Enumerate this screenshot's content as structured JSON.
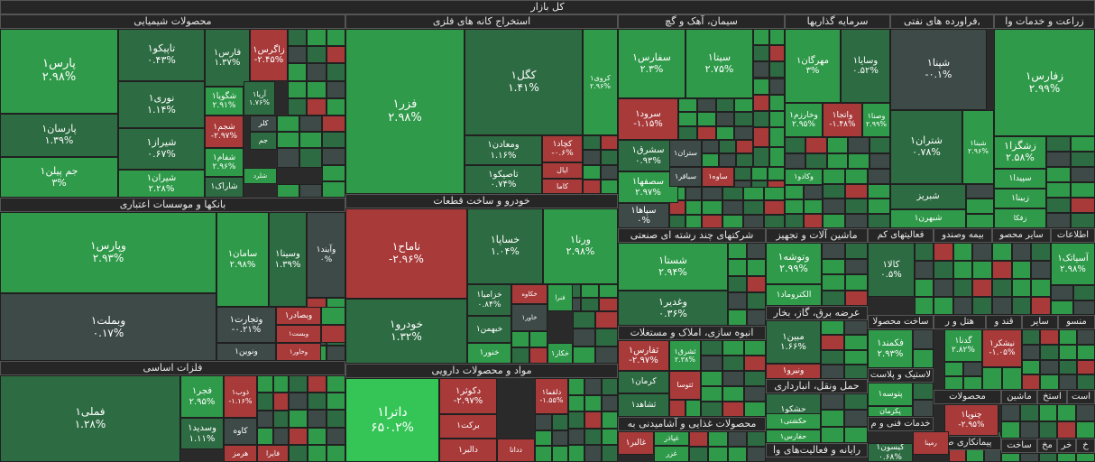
{
  "chart_data": {
    "type": "treemap",
    "title": "کل بازار",
    "colors": {
      "green": "#2f9a4a",
      "green_light": "#35c556",
      "green_dark": "#2d6b42",
      "gray": "#3d4a47",
      "red": "#a83a3a",
      "red_light": "#c24848"
    },
    "sectors": [
      {
        "key": "chem",
        "name": "محصولات شیمیایی"
      },
      {
        "key": "metal_ext",
        "name": "استخراج کانه های فلزی"
      },
      {
        "key": "cement",
        "name": "سیمان، آهک و گچ"
      },
      {
        "key": "invest",
        "name": "سرمایه گذاریها"
      },
      {
        "key": "oil",
        "name": "فراورده های نفتی,"
      },
      {
        "key": "agri",
        "name": "زراعت و خدمات وا"
      },
      {
        "key": "bank",
        "name": "بانکها و موسسات اعتباری"
      },
      {
        "key": "auto",
        "name": "خودرو و ساخت قطعات"
      },
      {
        "key": "multi",
        "name": "شرکتهای چند رشته ای صنعتی"
      },
      {
        "key": "mach",
        "name": "ماشین آلات و تجهیز"
      },
      {
        "key": "kom",
        "name": "فعالیتهای کم"
      },
      {
        "key": "ins",
        "name": "بیمه وصندو"
      },
      {
        "key": "misc",
        "name": "سایر محصو"
      },
      {
        "key": "info",
        "name": "اطلاعات"
      },
      {
        "key": "basic",
        "name": "فلزات اساسی"
      },
      {
        "key": "pharma",
        "name": "مواد و محصولات دارویی"
      },
      {
        "key": "mass",
        "name": "انبوه سازی، املاک و مستغلات"
      },
      {
        "key": "elec",
        "name": "عرضه برق، گاز، بخار"
      },
      {
        "key": "build",
        "name": "ساخت محصولا"
      },
      {
        "key": "hotel",
        "name": "هتل و ر"
      },
      {
        "key": "sugar",
        "name": "قند و"
      },
      {
        "key": "sayer",
        "name": "سایر"
      },
      {
        "key": "mansu",
        "name": "منسو"
      },
      {
        "key": "food",
        "name": "محصولات غذایی و آشامیدنی به"
      },
      {
        "key": "transport",
        "name": "حمل ونقل، انبارداری"
      },
      {
        "key": "plastic",
        "name": "لاستیک و پلاست"
      },
      {
        "key": "techserv",
        "name": "خدمات فنی و م"
      },
      {
        "key": "mahsulat",
        "name": "محصولات"
      },
      {
        "key": "mashin2",
        "name": "ماشین"
      },
      {
        "key": "estekh",
        "name": "استخ"
      },
      {
        "key": "ast",
        "name": "است"
      },
      {
        "key": "computer",
        "name": "رایانه و فعالیت‌های وا"
      },
      {
        "key": "contract",
        "name": "پیمانکاری ص"
      },
      {
        "key": "sakht",
        "name": "ساخت"
      },
      {
        "key": "mokh",
        "name": "مخ"
      },
      {
        "key": "khor",
        "name": "خر"
      },
      {
        "key": "kh",
        "name": "خ"
      }
    ],
    "tiles": [
      {
        "s": "chem",
        "n": "پارس۱",
        "v": "۲.۹۸%",
        "c": "green"
      },
      {
        "s": "chem",
        "n": "پارسان۱",
        "v": "۱.۳۹%",
        "c": "green_dark"
      },
      {
        "s": "chem",
        "n": "جم پیلن۱",
        "v": "۳%",
        "c": "green"
      },
      {
        "s": "chem",
        "n": "تاپیکو۱",
        "v": "۰.۴۳%",
        "c": "green_dark"
      },
      {
        "s": "chem",
        "n": "نوری۱",
        "v": "۱.۱۴%",
        "c": "green_dark"
      },
      {
        "s": "chem",
        "n": "شیراز۱",
        "v": "۰.۶۷%",
        "c": "green_dark"
      },
      {
        "s": "chem",
        "n": "شیران۱",
        "v": "۲.۲۸%",
        "c": "green"
      },
      {
        "s": "chem",
        "n": "فارس۱",
        "v": "۱.۳۷%",
        "c": "green_dark"
      },
      {
        "s": "chem",
        "n": "زاگرس۱",
        "v": "-۲.۴۵%",
        "c": "red"
      },
      {
        "s": "chem",
        "n": "شگویا۱",
        "v": "۲.۹۱%",
        "c": "green"
      },
      {
        "s": "chem",
        "n": "آریا۱",
        "v": "۱.۷۶%",
        "c": "green_dark"
      },
      {
        "s": "chem",
        "n": "شجم۱",
        "v": "-۲.۹۷%",
        "c": "red"
      },
      {
        "s": "chem",
        "n": "کلر",
        "v": "",
        "c": "gray"
      },
      {
        "s": "chem",
        "n": "شفام۱",
        "v": "۲.۹۶%",
        "c": "green"
      },
      {
        "s": "chem",
        "n": "جم",
        "v": "",
        "c": "green_dark"
      },
      {
        "s": "chem",
        "n": "شاراک۱",
        "v": "",
        "c": "green_dark"
      },
      {
        "s": "chem",
        "n": "شلرد",
        "v": "",
        "c": "green"
      },
      {
        "s": "metal_ext",
        "n": "فزر۱",
        "v": "۲.۹۸%",
        "c": "green"
      },
      {
        "s": "metal_ext",
        "n": "کگل۱",
        "v": "۱.۴۱%",
        "c": "green_dark"
      },
      {
        "s": "metal_ext",
        "n": "کروی۱",
        "v": "۲.۹۶%",
        "c": "green"
      },
      {
        "s": "metal_ext",
        "n": "ومعادن۱",
        "v": "۱.۱۶%",
        "c": "green_dark"
      },
      {
        "s": "metal_ext",
        "n": "کچاد۱",
        "v": "-۰.۶%",
        "c": "red"
      },
      {
        "s": "metal_ext",
        "n": "تاصیکو۱",
        "v": "۰.۷۴%",
        "c": "green_dark"
      },
      {
        "s": "metal_ext",
        "n": "ایال",
        "v": "",
        "c": "red"
      },
      {
        "s": "metal_ext",
        "n": "کاما",
        "v": "",
        "c": "red"
      },
      {
        "s": "cement",
        "n": "سفارس۱",
        "v": "۲.۳%",
        "c": "green"
      },
      {
        "s": "cement",
        "n": "سیتا۱",
        "v": "۲.۷۵%",
        "c": "green"
      },
      {
        "s": "cement",
        "n": "سرود۱",
        "v": "-۱.۱۵%",
        "c": "red"
      },
      {
        "s": "cement",
        "n": "سشرق۱",
        "v": "۰.۹۳%",
        "c": "green_dark"
      },
      {
        "s": "cement",
        "n": "ستران۱",
        "v": "",
        "c": "gray"
      },
      {
        "s": "cement",
        "n": "سصفها۱",
        "v": "۲.۹۷%",
        "c": "green"
      },
      {
        "s": "cement",
        "n": "سباقر۱",
        "v": "",
        "c": "gray"
      },
      {
        "s": "cement",
        "n": "ساوه۱",
        "v": "",
        "c": "red"
      },
      {
        "s": "cement",
        "n": "سپاها۱",
        "v": "۰%",
        "c": "gray"
      },
      {
        "s": "invest",
        "n": "مهرگان۱",
        "v": "۳%",
        "c": "green"
      },
      {
        "s": "invest",
        "n": "وسایا۱",
        "v": "۰.۵۲%",
        "c": "green_dark"
      },
      {
        "s": "invest",
        "n": "وخارزم۱",
        "v": "۲.۹۵%",
        "c": "green"
      },
      {
        "s": "invest",
        "n": "واتجا۱",
        "v": "-۱.۴۸%",
        "c": "red"
      },
      {
        "s": "invest",
        "n": "وصنا۱",
        "v": "۲.۹۹%",
        "c": "green"
      },
      {
        "s": "invest",
        "n": "وکادو۱",
        "v": "",
        "c": "green"
      },
      {
        "s": "oil",
        "n": "شپنا۱",
        "v": "-۰.۱%",
        "c": "gray"
      },
      {
        "s": "oil",
        "n": "شتران۱",
        "v": "۰.۷۸%",
        "c": "green_dark"
      },
      {
        "s": "oil",
        "n": "شبنا۱",
        "v": "۲.۹۶%",
        "c": "green"
      },
      {
        "s": "oil",
        "n": "شبریز",
        "v": "",
        "c": "green_dark"
      },
      {
        "s": "oil",
        "n": "شبهرن۱",
        "v": "",
        "c": "green"
      },
      {
        "s": "agri",
        "n": "زفارس۱",
        "v": "۲.۹۹%",
        "c": "green"
      },
      {
        "s": "agri",
        "n": "زشگزا۱",
        "v": "۲.۵۸%",
        "c": "green"
      },
      {
        "s": "agri",
        "n": "سپیدا۱",
        "v": "",
        "c": "green"
      },
      {
        "s": "agri",
        "n": "زبینا۱",
        "v": "",
        "c": "green"
      },
      {
        "s": "agri",
        "n": "زفکا",
        "v": "",
        "c": "green"
      },
      {
        "s": "bank",
        "n": "وپارس۱",
        "v": "۲.۹۳%",
        "c": "green"
      },
      {
        "s": "bank",
        "n": "سامان۱",
        "v": "۲.۹۸%",
        "c": "green"
      },
      {
        "s": "bank",
        "n": "وسینا۱",
        "v": "۱.۳۹%",
        "c": "green_dark"
      },
      {
        "s": "bank",
        "n": "وآیند۱",
        "v": "۰%",
        "c": "gray"
      },
      {
        "s": "bank",
        "n": "وبملت۱",
        "v": "۰.۱۷%",
        "c": "gray"
      },
      {
        "s": "bank",
        "n": "وتجارت۱",
        "v": "-۰.۲۱%",
        "c": "gray"
      },
      {
        "s": "bank",
        "n": "وبصادر۱",
        "v": "",
        "c": "red"
      },
      {
        "s": "bank",
        "n": "ونوین۱",
        "v": "",
        "c": "gray"
      },
      {
        "s": "bank",
        "n": "وبست۱",
        "v": "",
        "c": "red"
      },
      {
        "s": "bank",
        "n": "وخاور۱",
        "v": "",
        "c": "red"
      },
      {
        "s": "auto",
        "n": "ناماح۱",
        "v": "-۲.۹۶%",
        "c": "red"
      },
      {
        "s": "auto",
        "n": "خساپا۱",
        "v": "۱.۰۴%",
        "c": "green_dark"
      },
      {
        "s": "auto",
        "n": "ورنا۱",
        "v": "۲.۹۸%",
        "c": "green"
      },
      {
        "s": "auto",
        "n": "خودرو۱",
        "v": "۱.۳۲%",
        "c": "green_dark"
      },
      {
        "s": "auto",
        "n": "خزامیا۱",
        "v": "۰.۸۴%",
        "c": "green_dark"
      },
      {
        "s": "auto",
        "n": "خکاوه",
        "v": "",
        "c": "red"
      },
      {
        "s": "auto",
        "n": "فنرا",
        "v": "",
        "c": "green"
      },
      {
        "s": "auto",
        "n": "خبهمن۱",
        "v": "",
        "c": "green_dark"
      },
      {
        "s": "auto",
        "n": "خاور۱",
        "v": "",
        "c": "gray"
      },
      {
        "s": "auto",
        "n": "خنور۱",
        "v": "",
        "c": "green"
      },
      {
        "s": "auto",
        "n": "خکار۱",
        "v": "",
        "c": "green"
      },
      {
        "s": "multi",
        "n": "شستا۱",
        "v": "۲.۹۴%",
        "c": "green"
      },
      {
        "s": "multi",
        "n": "وغدیر۱",
        "v": "۰.۳۶%",
        "c": "green_dark"
      },
      {
        "s": "mach",
        "n": "وتوشه۱",
        "v": "۲.۹۹%",
        "c": "green"
      },
      {
        "s": "mach",
        "n": "الکتروماد۱",
        "v": "",
        "c": "green"
      },
      {
        "s": "kom",
        "n": "کالا۱",
        "v": "۰.۵%",
        "c": "green_dark"
      },
      {
        "s": "misc",
        "n": "آسیاتک۱",
        "v": "۲.۹۸%",
        "c": "green"
      },
      {
        "s": "basic",
        "n": "فملی۱",
        "v": "۱.۲۸%",
        "c": "green_dark"
      },
      {
        "s": "basic",
        "n": "فجر۱",
        "v": "۲.۹۵%",
        "c": "green"
      },
      {
        "s": "basic",
        "n": "ذوب۱",
        "v": "-۱.۱۶%",
        "c": "red"
      },
      {
        "s": "basic",
        "n": "وسدید۱",
        "v": "۱.۱۱%",
        "c": "green_dark"
      },
      {
        "s": "basic",
        "n": "کاوه",
        "v": "",
        "c": "gray"
      },
      {
        "s": "basic",
        "n": "هرمز",
        "v": "",
        "c": "red"
      },
      {
        "s": "basic",
        "n": "فایرا",
        "v": "",
        "c": "red"
      },
      {
        "s": "pharma",
        "n": "داترا۱",
        "v": "۶۵۰.۲%",
        "c": "green_light"
      },
      {
        "s": "pharma",
        "n": "دکوثر۱",
        "v": "-۲.۹۷%",
        "c": "red"
      },
      {
        "s": "pharma",
        "n": "دلقما۱",
        "v": "-۱.۵۵%",
        "c": "red"
      },
      {
        "s": "pharma",
        "n": "برکت۱",
        "v": "",
        "c": "red"
      },
      {
        "s": "pharma",
        "n": "دالبر۱",
        "v": "",
        "c": "red"
      },
      {
        "s": "pharma",
        "n": "ددانا",
        "v": "",
        "c": "red"
      },
      {
        "s": "mass",
        "n": "ثفارس۱",
        "v": "-۲.۹۷%",
        "c": "red"
      },
      {
        "s": "mass",
        "n": "ثشرق۱",
        "v": "۲.۳۸%",
        "c": "green"
      },
      {
        "s": "mass",
        "n": "کرمان۱",
        "v": "",
        "c": "green_dark"
      },
      {
        "s": "mass",
        "n": "ثتوسا",
        "v": "",
        "c": "red"
      },
      {
        "s": "mass",
        "n": "ثشاهد۱",
        "v": "",
        "c": "green_dark"
      },
      {
        "s": "elec",
        "n": "مبین۱",
        "v": "۱.۶۶%",
        "c": "green_dark"
      },
      {
        "s": "elec",
        "n": "ونیرو۱",
        "v": "",
        "c": "red"
      },
      {
        "s": "build",
        "n": "فکمند۱",
        "v": "۲.۹۳%",
        "c": "green"
      },
      {
        "s": "hotel",
        "n": "گدنا۱",
        "v": "۲.۸۲%",
        "c": "green"
      },
      {
        "s": "sugar",
        "n": "نیشکر۱",
        "v": "-۱.۰۵%",
        "c": "red"
      },
      {
        "s": "food",
        "n": "غالبر۱",
        "v": "",
        "c": "red"
      },
      {
        "s": "food",
        "n": "غپاذر",
        "v": "",
        "c": "green"
      },
      {
        "s": "food",
        "n": "غزر",
        "v": "",
        "c": "green"
      },
      {
        "s": "transport",
        "n": "حشکو۱",
        "v": "",
        "c": "green_dark"
      },
      {
        "s": "transport",
        "n": "حکشتی۱",
        "v": "",
        "c": "green"
      },
      {
        "s": "transport",
        "n": "حفارس۱",
        "v": "",
        "c": "green"
      },
      {
        "s": "plastic",
        "n": "پتوسه۱",
        "v": "",
        "c": "green"
      },
      {
        "s": "plastic",
        "n": "پکرمان",
        "v": "",
        "c": "green"
      },
      {
        "s": "mahsulat",
        "n": "چنوپا۱",
        "v": "-۲.۹۵%",
        "c": "red"
      },
      {
        "s": "computer",
        "n": "کیسون۱",
        "v": "۰.۶۸%",
        "c": "green_dark"
      },
      {
        "s": "computer",
        "n": "رمپنا",
        "v": "",
        "c": "red"
      }
    ]
  }
}
